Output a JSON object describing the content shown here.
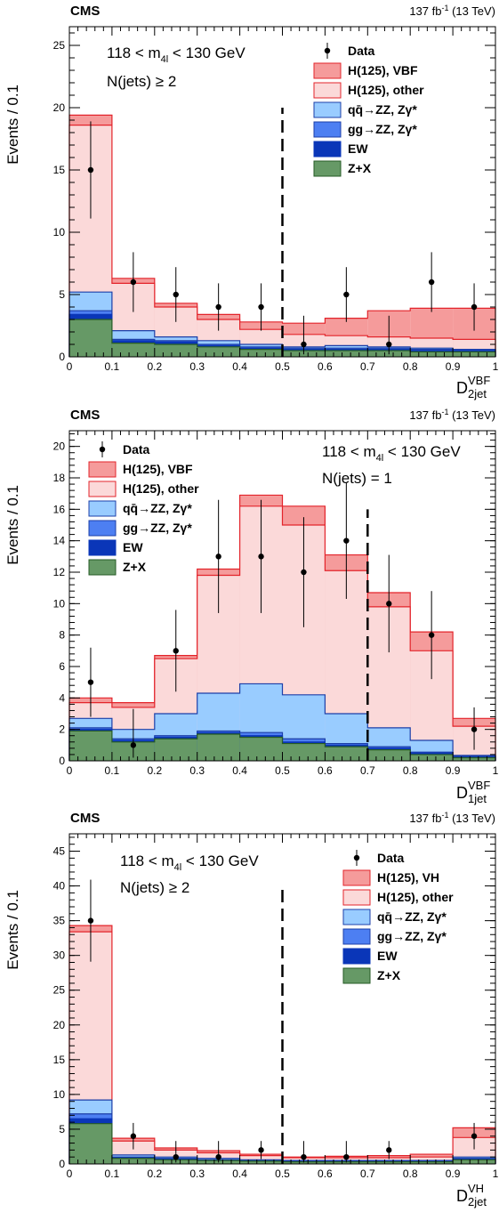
{
  "colors": {
    "signal_main": "#f59b9b",
    "signal_main_line": "#e3242b",
    "signal_other": "#fbd9d9",
    "signal_other_line": "#e3242b",
    "qqzz": "#99ccff",
    "qqzz_line": "#1c3fa8",
    "ggzz": "#4d7ff2",
    "ggzz_line": "#1c3fa8",
    "ew": "#0a36b8",
    "zx": "#669966",
    "zx_line": "#265b26",
    "cut_line": "#000000",
    "data": "#000000"
  },
  "chart_data": [
    {
      "type": "bar",
      "name": "top",
      "cms_label": "CMS",
      "lumi_label": "137 fb",
      "lumi_sup": "-1",
      "lumi_energy": " (13 TeV)",
      "ylabel": "Events / 0.1",
      "xlabel": "D",
      "xlabel_sup": "VBF",
      "xlabel_sub": "2jet",
      "cut_text_1": "118 < m",
      "cut_text_1_sub": "4l",
      "cut_text_1_end": " < 130 GeV",
      "cut_text_2": "N(jets) ≥ 2",
      "xlim": [
        0,
        1
      ],
      "ylim": [
        0,
        26.5
      ],
      "xticks": [
        "0",
        "0.1",
        "0.2",
        "0.3",
        "0.4",
        "0.5",
        "0.6",
        "0.7",
        "0.8",
        "0.9",
        "1"
      ],
      "yticks": [
        "0",
        "5",
        "10",
        "15",
        "20",
        "25"
      ],
      "ytick_values": [
        0,
        5,
        10,
        15,
        20,
        25
      ],
      "cut_x": 0.5,
      "cut_top": 20,
      "bins": [
        0,
        0.1,
        0.2,
        0.3,
        0.4,
        0.5,
        0.6,
        0.7,
        0.8,
        0.9,
        1.0
      ],
      "legend": [
        "Data",
        "H(125), VBF",
        "H(125), other",
        "qq̄→ZZ, Zγ*",
        "gg→ZZ, Zγ*",
        "EW",
        "Z+X"
      ],
      "stacks": {
        "zx": [
          3.0,
          1.1,
          1.0,
          0.8,
          0.6,
          0.5,
          0.5,
          0.5,
          0.4,
          0.4
        ],
        "ew": [
          3.4,
          1.3,
          1.2,
          0.9,
          0.7,
          0.6,
          0.6,
          0.6,
          0.5,
          0.5
        ],
        "ggzz": [
          3.7,
          1.4,
          1.3,
          1.0,
          0.8,
          0.7,
          0.7,
          0.7,
          0.6,
          0.6
        ],
        "qqzz": [
          5.2,
          2.1,
          1.6,
          1.3,
          1.0,
          0.8,
          0.9,
          0.8,
          0.7,
          0.6
        ],
        "other": [
          18.6,
          5.9,
          4.0,
          3.0,
          2.2,
          1.8,
          1.7,
          1.6,
          1.5,
          1.4
        ],
        "signal": [
          19.4,
          6.3,
          4.3,
          3.4,
          2.8,
          2.7,
          3.1,
          3.7,
          3.9,
          3.9
        ]
      },
      "data_x": [
        0.05,
        0.15,
        0.25,
        0.35,
        0.45,
        0.55,
        0.65,
        0.75,
        0.85,
        0.95
      ],
      "data_y": [
        15,
        6,
        5,
        4,
        4,
        1,
        5,
        1,
        6,
        4
      ],
      "data_err_lo": [
        3.9,
        2.4,
        2.2,
        1.9,
        1.9,
        0.8,
        2.2,
        0.8,
        2.4,
        1.9
      ],
      "data_err_hi": [
        3.9,
        2.4,
        2.2,
        1.9,
        1.9,
        2.3,
        2.2,
        2.3,
        2.4,
        1.9
      ]
    },
    {
      "type": "bar",
      "name": "middle",
      "cms_label": "CMS",
      "lumi_label": "137 fb",
      "lumi_sup": "-1",
      "lumi_energy": " (13 TeV)",
      "ylabel": "Events / 0.1",
      "xlabel": "D",
      "xlabel_sup": "VBF",
      "xlabel_sub": "1jet",
      "cut_text_1": "118 < m",
      "cut_text_1_sub": "4l",
      "cut_text_1_end": " < 130 GeV",
      "cut_text_2": "N(jets) = 1",
      "xlim": [
        0,
        1
      ],
      "ylim": [
        0,
        21
      ],
      "xticks": [
        "0",
        "0.1",
        "0.2",
        "0.3",
        "0.4",
        "0.5",
        "0.6",
        "0.7",
        "0.8",
        "0.9",
        "1"
      ],
      "yticks": [
        "0",
        "2",
        "4",
        "6",
        "8",
        "10",
        "12",
        "14",
        "16",
        "18",
        "20"
      ],
      "ytick_values": [
        0,
        2,
        4,
        6,
        8,
        10,
        12,
        14,
        16,
        18,
        20
      ],
      "cut_x": 0.7,
      "cut_top": 16,
      "bins": [
        0,
        0.1,
        0.2,
        0.3,
        0.4,
        0.5,
        0.6,
        0.7,
        0.8,
        0.9,
        1.0
      ],
      "legend": [
        "Data",
        "H(125), VBF",
        "H(125), other",
        "qq̄→ZZ, Zγ*",
        "gg→ZZ, Zγ*",
        "EW",
        "Z+X"
      ],
      "stacks": {
        "zx": [
          1.9,
          1.2,
          1.4,
          1.7,
          1.5,
          1.1,
          0.9,
          0.7,
          0.4,
          0.2
        ],
        "ew": [
          2.0,
          1.3,
          1.5,
          1.8,
          1.6,
          1.2,
          1.0,
          0.8,
          0.5,
          0.25
        ],
        "ggzz": [
          2.1,
          1.4,
          1.6,
          1.9,
          1.8,
          1.4,
          1.1,
          0.9,
          0.55,
          0.3
        ],
        "qqzz": [
          2.7,
          2.0,
          3.0,
          4.3,
          4.9,
          4.2,
          3.0,
          2.1,
          1.3,
          0.35
        ],
        "other": [
          3.7,
          3.4,
          6.5,
          11.8,
          16.2,
          15.0,
          12.1,
          9.8,
          7.0,
          2.2
        ],
        "signal": [
          4.0,
          3.7,
          6.7,
          12.2,
          16.9,
          16.2,
          13.1,
          10.7,
          8.2,
          2.7
        ]
      },
      "data_x": [
        0.05,
        0.15,
        0.25,
        0.35,
        0.45,
        0.55,
        0.65,
        0.75,
        0.85,
        0.95
      ],
      "data_y": [
        5,
        1,
        7,
        13,
        13,
        12,
        14,
        10,
        8,
        2
      ],
      "data_err_lo": [
        2.2,
        0.8,
        2.6,
        3.6,
        3.6,
        3.5,
        3.7,
        3.1,
        2.8,
        1.3
      ],
      "data_err_hi": [
        2.2,
        2.3,
        2.6,
        3.6,
        3.6,
        3.5,
        3.7,
        3.1,
        2.8,
        1.4
      ]
    },
    {
      "type": "bar",
      "name": "bottom",
      "cms_label": "CMS",
      "lumi_label": "137 fb",
      "lumi_sup": "-1",
      "lumi_energy": " (13 TeV)",
      "ylabel": "Events / 0.1",
      "xlabel": "D",
      "xlabel_sup": "VH",
      "xlabel_sub": "2jet",
      "cut_text_1": "118 < m",
      "cut_text_1_sub": "4l",
      "cut_text_1_end": " < 130 GeV",
      "cut_text_2": "N(jets) ≥ 2",
      "xlim": [
        0,
        1
      ],
      "ylim": [
        0,
        47.5
      ],
      "xticks": [
        "0",
        "0.1",
        "0.2",
        "0.3",
        "0.4",
        "0.5",
        "0.6",
        "0.7",
        "0.8",
        "0.9",
        "1"
      ],
      "yticks": [
        "0",
        "5",
        "10",
        "15",
        "20",
        "25",
        "30",
        "35",
        "40",
        "45"
      ],
      "ytick_values": [
        0,
        5,
        10,
        15,
        20,
        25,
        30,
        35,
        40,
        45
      ],
      "cut_x": 0.5,
      "cut_top": 39.5,
      "bins": [
        0,
        0.1,
        0.2,
        0.3,
        0.4,
        0.5,
        0.6,
        0.7,
        0.8,
        0.9,
        1.0
      ],
      "legend": [
        "Data",
        "H(125), VH",
        "H(125), other",
        "qq̄→ZZ, Zγ*",
        "gg→ZZ, Zγ*",
        "EW",
        "Z+X"
      ],
      "stacks": {
        "zx": [
          5.8,
          0.8,
          0.6,
          0.5,
          0.4,
          0.3,
          0.3,
          0.3,
          0.3,
          0.6
        ],
        "ew": [
          6.5,
          0.9,
          0.7,
          0.55,
          0.45,
          0.35,
          0.35,
          0.35,
          0.35,
          0.7
        ],
        "ggzz": [
          7.2,
          1.0,
          0.8,
          0.6,
          0.5,
          0.4,
          0.4,
          0.4,
          0.4,
          0.8
        ],
        "qqzz": [
          9.2,
          1.3,
          1.0,
          0.8,
          0.6,
          0.5,
          0.5,
          0.5,
          0.5,
          1.0
        ],
        "other": [
          33.4,
          3.3,
          2.0,
          1.6,
          1.2,
          0.9,
          0.9,
          0.9,
          1.0,
          3.8
        ],
        "signal": [
          34.3,
          3.7,
          2.3,
          1.9,
          1.4,
          1.0,
          1.1,
          1.2,
          1.4,
          5.2
        ]
      },
      "data_x": [
        0.05,
        0.15,
        0.25,
        0.35,
        0.45,
        0.55,
        0.65,
        0.75,
        0.85,
        0.95
      ],
      "data_y": [
        35,
        4,
        1,
        1,
        2,
        1,
        1,
        2,
        null,
        4
      ],
      "data_err_lo": [
        5.9,
        1.9,
        0.8,
        0.8,
        1.3,
        0.8,
        0.8,
        1.3,
        null,
        1.9
      ],
      "data_err_hi": [
        5.9,
        1.9,
        2.3,
        2.3,
        1.3,
        2.3,
        2.3,
        1.3,
        null,
        1.9
      ]
    }
  ]
}
